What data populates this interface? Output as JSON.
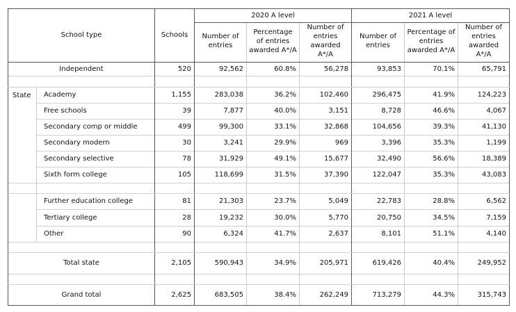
{
  "header": {
    "school_type": "School type",
    "schools": "Schools",
    "year_2020": "2020 A level",
    "year_2021": "2021 A level",
    "entries": "Number of entries",
    "pct_awarded": "Percentage of entries awarded A*/A",
    "num_awarded": "Number of entries awarded A*/A"
  },
  "independent": {
    "label": "Independent",
    "schools": "520",
    "e20": "92,562",
    "p20": "60.8%",
    "a20": "56,278",
    "e21": "93,853",
    "p21": "70.1%",
    "a21": "65,791"
  },
  "state_label": "State",
  "state_rows": [
    {
      "label": "Academy",
      "schools": "1,155",
      "e20": "283,038",
      "p20": "36.2%",
      "a20": "102,460",
      "e21": "296,475",
      "p21": "41.9%",
      "a21": "124,223"
    },
    {
      "label": "Free schools",
      "schools": "39",
      "e20": "7,877",
      "p20": "40.0%",
      "a20": "3,151",
      "e21": "8,728",
      "p21": "46.6%",
      "a21": "4,067"
    },
    {
      "label": "Secondary comp or middle",
      "schools": "499",
      "e20": "99,300",
      "p20": "33.1%",
      "a20": "32,868",
      "e21": "104,656",
      "p21": "39.3%",
      "a21": "41,130"
    },
    {
      "label": "Secondary modern",
      "schools": "30",
      "e20": "3,241",
      "p20": "29.9%",
      "a20": "969",
      "e21": "3,396",
      "p21": "35.3%",
      "a21": "1,199"
    },
    {
      "label": "Secondary selective",
      "schools": "78",
      "e20": "31,929",
      "p20": "49.1%",
      "a20": "15,677",
      "e21": "32,490",
      "p21": "56.6%",
      "a21": "18,389"
    },
    {
      "label": "Sixth form college",
      "schools": "105",
      "e20": "118,699",
      "p20": "31.5%",
      "a20": "37,390",
      "e21": "122,047",
      "p21": "35.3%",
      "a21": "43,083"
    }
  ],
  "other_rows": [
    {
      "label": "Further education college",
      "schools": "81",
      "e20": "21,303",
      "p20": "23.7%",
      "a20": "5,049",
      "e21": "22,783",
      "p21": "28.8%",
      "a21": "6,562"
    },
    {
      "label": "Tertiary college",
      "schools": "28",
      "e20": "19,232",
      "p20": "30.0%",
      "a20": "5,770",
      "e21": "20,750",
      "p21": "34.5%",
      "a21": "7,159"
    },
    {
      "label": "Other",
      "schools": "90",
      "e20": "6,324",
      "p20": "41.7%",
      "a20": "2,637",
      "e21": "8,101",
      "p21": "51.1%",
      "a21": "4,140"
    }
  ],
  "total_state": {
    "label": "Total state",
    "schools": "2,105",
    "e20": "590,943",
    "p20": "34.9%",
    "a20": "205,971",
    "e21": "619,426",
    "p21": "40.4%",
    "a21": "249,952"
  },
  "grand_total": {
    "label": "Grand total",
    "schools": "2,625",
    "e20": "683,505",
    "p20": "38.4%",
    "a20": "262,249",
    "e21": "713,279",
    "p21": "44.3%",
    "a21": "315,743"
  }
}
